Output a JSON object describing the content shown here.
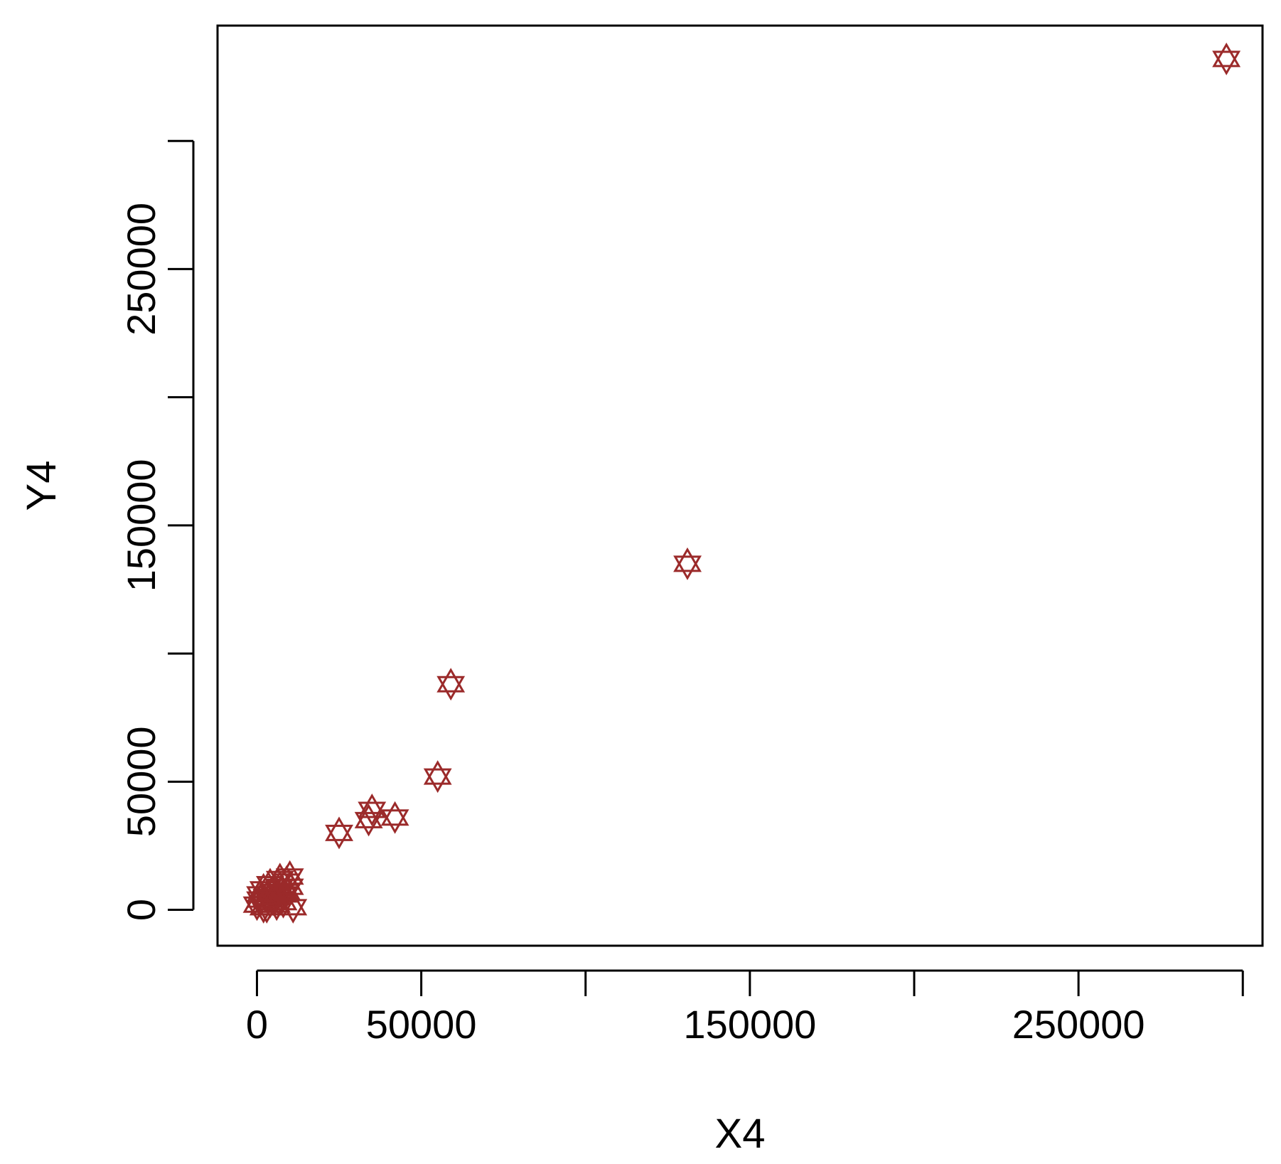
{
  "chart_data": {
    "type": "scatter",
    "title": "",
    "xlabel": "X4",
    "ylabel": "Y4",
    "xlim": [
      -12000,
      306000
    ],
    "ylim": [
      -14000,
      345000
    ],
    "x_ticks": [
      0,
      50000,
      100000,
      150000,
      200000,
      250000,
      300000
    ],
    "x_tick_labels": [
      "0",
      "50000",
      "",
      "150000",
      "",
      "250000",
      ""
    ],
    "y_ticks": [
      0,
      50000,
      100000,
      150000,
      200000,
      250000,
      300000
    ],
    "y_tick_labels": [
      "0",
      "50000",
      "",
      "150000",
      "",
      "250000",
      ""
    ],
    "grid": false,
    "legend": "none",
    "marker": "star-of-david",
    "marker_color": "#9b2a2a",
    "points": [
      {
        "x": 295000,
        "y": 332000
      },
      {
        "x": 131000,
        "y": 135000
      },
      {
        "x": 59000,
        "y": 88000
      },
      {
        "x": 55000,
        "y": 52000
      },
      {
        "x": 42000,
        "y": 36000
      },
      {
        "x": 35000,
        "y": 39000
      },
      {
        "x": 34000,
        "y": 35000
      },
      {
        "x": 25000,
        "y": 30000
      },
      {
        "x": 0,
        "y": 2000
      },
      {
        "x": 1000,
        "y": 4000
      },
      {
        "x": 2000,
        "y": 1000
      },
      {
        "x": 3000,
        "y": 5000
      },
      {
        "x": 4000,
        "y": 3000
      },
      {
        "x": 5000,
        "y": 7000
      },
      {
        "x": 6000,
        "y": 2000
      },
      {
        "x": 7000,
        "y": 9000
      },
      {
        "x": 8000,
        "y": 6000
      },
      {
        "x": 9000,
        "y": 11000
      },
      {
        "x": 10000,
        "y": 13000
      },
      {
        "x": 11000,
        "y": 1000
      },
      {
        "x": 2000,
        "y": 8000
      },
      {
        "x": 4000,
        "y": 10000
      },
      {
        "x": 6000,
        "y": 5000
      },
      {
        "x": 8000,
        "y": 3000
      },
      {
        "x": 3000,
        "y": 1000
      },
      {
        "x": 5000,
        "y": 4000
      },
      {
        "x": 7000,
        "y": 12000
      },
      {
        "x": 9000,
        "y": 7000
      },
      {
        "x": 1000,
        "y": 6000
      },
      {
        "x": 10000,
        "y": 9000
      }
    ]
  }
}
